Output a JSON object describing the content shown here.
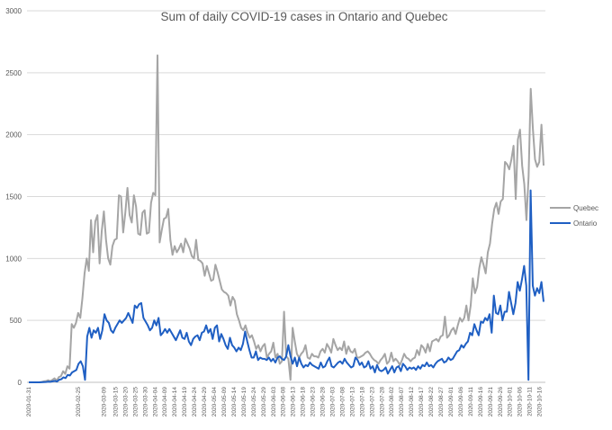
{
  "chart_data": {
    "type": "line",
    "title": "Sum of daily COVID-19 cases in Ontario and Quebec",
    "xlabel": "",
    "ylabel": "",
    "ylim": [
      0,
      3000
    ],
    "yticks": [
      0,
      500,
      1000,
      1500,
      2000,
      2500,
      3000
    ],
    "x_start": "2020-01-31",
    "x_end": "2020-10-18",
    "x_tick_labels": [
      "2020-01-31",
      "2020-02-25",
      "2020-03-09",
      "2020-03-15",
      "2020-03-20",
      "2020-03-25",
      "2020-03-30",
      "2020-04-04",
      "2020-04-09",
      "2020-04-14",
      "2020-04-19",
      "2020-04-24",
      "2020-04-29",
      "2020-05-04",
      "2020-05-09",
      "2020-05-14",
      "2020-05-19",
      "2020-05-24",
      "2020-05-29",
      "2020-06-03",
      "2020-06-08",
      "2020-06-13",
      "2020-06-18",
      "2020-06-23",
      "2020-06-28",
      "2020-07-03",
      "2020-07-08",
      "2020-07-13",
      "2020-07-18",
      "2020-07-23",
      "2020-07-28",
      "2020-08-02",
      "2020-08-07",
      "2020-08-12",
      "2020-08-17",
      "2020-08-22",
      "2020-08-27",
      "2020-09-01",
      "2020-09-06",
      "2020-09-11",
      "2020-09-16",
      "2020-09-21",
      "2020-09-26",
      "2020-10-01",
      "2020-10-06",
      "2020-10-11",
      "2020-10-16"
    ],
    "grid": true,
    "legend": "right",
    "series": [
      {
        "name": "Quebec",
        "color": "#a5a5a5",
        "values": [
          0,
          0,
          0,
          0,
          0,
          1,
          3,
          8,
          10,
          17,
          10,
          20,
          32,
          14,
          42,
          50,
          90,
          68,
          130,
          110,
          470,
          440,
          480,
          560,
          520,
          680,
          880,
          1000,
          900,
          1310,
          1050,
          1300,
          1350,
          960,
          1220,
          1380,
          1150,
          1000,
          950,
          1100,
          1150,
          1160,
          1510,
          1500,
          1210,
          1370,
          1570,
          1350,
          1290,
          1510,
          1420,
          1200,
          1190,
          1370,
          1390,
          1200,
          1210,
          1450,
          1530,
          1510,
          2640,
          1130,
          1230,
          1320,
          1330,
          1400,
          1150,
          1030,
          1100,
          1050,
          1080,
          1120,
          1050,
          1160,
          1120,
          1080,
          1020,
          1000,
          1150,
          990,
          980,
          960,
          860,
          940,
          880,
          820,
          830,
          950,
          890,
          820,
          750,
          730,
          720,
          700,
          620,
          690,
          660,
          550,
          500,
          440,
          420,
          460,
          400,
          360,
          380,
          330,
          270,
          300,
          250,
          290,
          310,
          200,
          230,
          250,
          320,
          200,
          230,
          150,
          170,
          570,
          210,
          190,
          20,
          440,
          330,
          230,
          200,
          230,
          250,
          300,
          200,
          190,
          230,
          210,
          210,
          200,
          250,
          270,
          240,
          310,
          280,
          240,
          350,
          300,
          260,
          280,
          260,
          330,
          230,
          290,
          250,
          240,
          270,
          200,
          200,
          210,
          220,
          240,
          250,
          230,
          200,
          180,
          170,
          150,
          180,
          200,
          230,
          150,
          170,
          240,
          170,
          190,
          170,
          140,
          180,
          230,
          200,
          190,
          170,
          190,
          200,
          260,
          220,
          300,
          280,
          240,
          310,
          250,
          330,
          340,
          350,
          330,
          370,
          380,
          530,
          360,
          380,
          420,
          440,
          390,
          460,
          520,
          490,
          520,
          620,
          500,
          620,
          840,
          720,
          770,
          920,
          1010,
          950,
          880,
          1050,
          1120,
          1280,
          1400,
          1450,
          1360,
          1460,
          1480,
          1780,
          1760,
          1720,
          1800,
          1910,
          1480,
          1960,
          2040,
          1750,
          1600,
          1310,
          1660,
          2370,
          2050,
          1800,
          1740,
          1780,
          2080,
          1750
        ]
      },
      {
        "name": "Ontario",
        "color": "#1f5fc3",
        "values": [
          0,
          0,
          0,
          0,
          0,
          0,
          1,
          2,
          3,
          5,
          4,
          8,
          12,
          6,
          20,
          25,
          40,
          34,
          60,
          55,
          80,
          90,
          100,
          150,
          170,
          130,
          20,
          370,
          440,
          360,
          420,
          400,
          440,
          350,
          420,
          550,
          500,
          480,
          420,
          400,
          440,
          470,
          500,
          480,
          500,
          520,
          560,
          520,
          480,
          620,
          600,
          630,
          640,
          520,
          490,
          460,
          420,
          440,
          500,
          460,
          520,
          380,
          400,
          430,
          400,
          430,
          400,
          370,
          340,
          380,
          420,
          360,
          350,
          400,
          330,
          300,
          350,
          370,
          380,
          340,
          400,
          410,
          460,
          400,
          430,
          350,
          440,
          460,
          330,
          390,
          350,
          300,
          270,
          360,
          300,
          280,
          250,
          280,
          260,
          310,
          410,
          330,
          260,
          200,
          200,
          250,
          180,
          200,
          190,
          190,
          180,
          200,
          170,
          190,
          160,
          200,
          210,
          190,
          180,
          210,
          300,
          210,
          150,
          200,
          130,
          200,
          150,
          120,
          140,
          130,
          160,
          140,
          130,
          120,
          110,
          160,
          120,
          130,
          170,
          200,
          130,
          120,
          140,
          160,
          170,
          150,
          190,
          160,
          140,
          120,
          130,
          200,
          180,
          140,
          160,
          120,
          130,
          170,
          110,
          130,
          80,
          140,
          100,
          90,
          100,
          120,
          70,
          100,
          130,
          80,
          120,
          130,
          90,
          150,
          130,
          100,
          120,
          110,
          120,
          100,
          130,
          110,
          140,
          130,
          160,
          130,
          140,
          120,
          150,
          170,
          180,
          190,
          160,
          170,
          200,
          180,
          190,
          220,
          250,
          260,
          300,
          280,
          310,
          330,
          400,
          380,
          470,
          420,
          380,
          490,
          480,
          520,
          500,
          550,
          400,
          700,
          560,
          550,
          620,
          500,
          570,
          570,
          730,
          640,
          550,
          640,
          810,
          740,
          830,
          940,
          780,
          20,
          1550,
          780,
          700,
          760,
          720,
          810,
          650
        ]
      }
    ]
  }
}
